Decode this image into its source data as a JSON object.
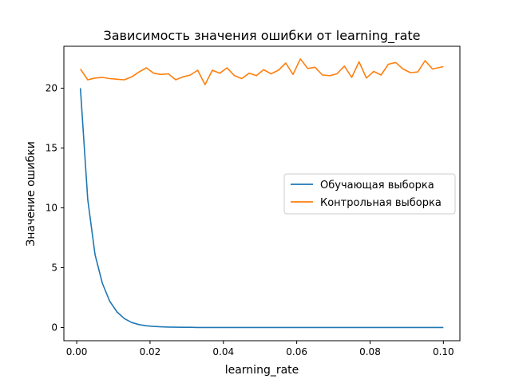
{
  "chart_data": {
    "type": "line",
    "title": "Зависимость значения ошибки от learning_rate",
    "xlabel": "learning_rate",
    "ylabel": "Значение ошибки",
    "xlim": [
      -0.0035,
      0.1045
    ],
    "ylim": [
      -1.1,
      23.5
    ],
    "xticks": [
      0.0,
      0.02,
      0.04,
      0.06,
      0.08,
      0.1
    ],
    "xtick_labels": [
      "0.00",
      "0.02",
      "0.04",
      "0.06",
      "0.08",
      "0.10"
    ],
    "yticks": [
      0,
      5,
      10,
      15,
      20
    ],
    "ytick_labels": [
      "0",
      "5",
      "10",
      "15",
      "20"
    ],
    "grid": false,
    "legend_position": "center-right",
    "x": [
      0.001,
      0.003,
      0.005,
      0.007,
      0.009,
      0.011,
      0.013,
      0.015,
      0.017,
      0.019,
      0.021,
      0.023,
      0.025,
      0.027,
      0.029,
      0.031,
      0.033,
      0.035,
      0.037,
      0.039,
      0.041,
      0.043,
      0.045,
      0.047,
      0.049,
      0.051,
      0.053,
      0.055,
      0.057,
      0.059,
      0.061,
      0.063,
      0.065,
      0.067,
      0.069,
      0.071,
      0.073,
      0.075,
      0.077,
      0.079,
      0.081,
      0.083,
      0.085,
      0.087,
      0.089,
      0.091,
      0.093,
      0.095,
      0.097,
      0.099
    ],
    "series": [
      {
        "name": "Обучающая выборка",
        "color": "#1f77b4",
        "x": [
          0.001,
          0.003,
          0.005,
          0.007,
          0.009,
          0.011,
          0.013,
          0.015,
          0.017,
          0.019,
          0.021,
          0.023,
          0.025,
          0.027,
          0.029,
          0.031,
          0.033,
          0.035,
          0.037,
          0.039,
          0.041,
          0.043,
          0.045,
          0.047,
          0.049,
          0.051,
          0.053,
          0.055,
          0.057,
          0.059,
          0.061,
          0.063,
          0.065,
          0.067,
          0.069,
          0.071,
          0.073,
          0.075,
          0.077,
          0.079,
          0.081,
          0.083,
          0.085,
          0.087,
          0.089,
          0.091,
          0.093,
          0.095,
          0.097,
          0.1
        ],
        "values": [
          20.0,
          10.7,
          6.1,
          3.7,
          2.2,
          1.3,
          0.75,
          0.42,
          0.25,
          0.15,
          0.09,
          0.06,
          0.04,
          0.03,
          0.02,
          0.02,
          0.01,
          0.01,
          0.01,
          0.01,
          0.01,
          0.01,
          0.01,
          0.01,
          0.01,
          0.01,
          0.01,
          0.01,
          0.01,
          0.01,
          0.01,
          0.01,
          0.01,
          0.01,
          0.01,
          0.01,
          0.01,
          0.01,
          0.01,
          0.01,
          0.01,
          0.01,
          0.01,
          0.01,
          0.01,
          0.01,
          0.01,
          0.01,
          0.01,
          0.01
        ]
      },
      {
        "name": "Контрольная выборка",
        "color": "#ff7f0e",
        "x": [
          0.001,
          0.003,
          0.005,
          0.007,
          0.009,
          0.011,
          0.013,
          0.015,
          0.017,
          0.019,
          0.021,
          0.023,
          0.025,
          0.027,
          0.029,
          0.031,
          0.033,
          0.035,
          0.037,
          0.039,
          0.041,
          0.043,
          0.045,
          0.047,
          0.049,
          0.051,
          0.053,
          0.055,
          0.057,
          0.059,
          0.061,
          0.063,
          0.065,
          0.067,
          0.069,
          0.071,
          0.073,
          0.075,
          0.077,
          0.079,
          0.081,
          0.083,
          0.085,
          0.087,
          0.089,
          0.091,
          0.093,
          0.095,
          0.097,
          0.1
        ],
        "values": [
          21.6,
          20.7,
          20.85,
          20.9,
          20.8,
          20.75,
          20.7,
          20.95,
          21.35,
          21.7,
          21.25,
          21.15,
          21.2,
          20.7,
          20.95,
          21.1,
          21.5,
          20.3,
          21.5,
          21.25,
          21.7,
          21.05,
          20.8,
          21.25,
          21.05,
          21.55,
          21.2,
          21.5,
          22.1,
          21.15,
          22.45,
          21.65,
          21.75,
          21.1,
          21.05,
          21.2,
          21.85,
          20.9,
          22.2,
          20.85,
          21.4,
          21.1,
          22.0,
          22.15,
          21.6,
          21.3,
          21.35,
          22.3,
          21.6,
          21.8
        ]
      }
    ]
  }
}
